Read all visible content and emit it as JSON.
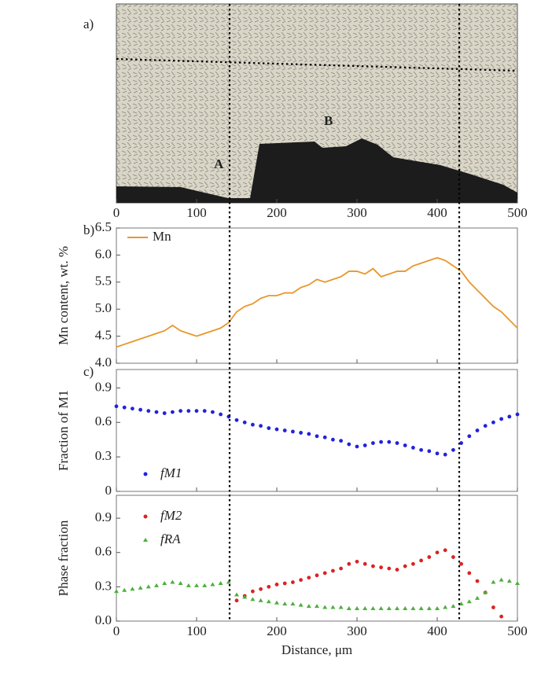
{
  "chart_data": [
    {
      "type": "image",
      "panel_label": "a)",
      "annotations": [
        "A",
        "B"
      ],
      "xlim": [
        0,
        500
      ],
      "xticks": [
        0,
        100,
        200,
        300,
        400,
        500
      ]
    },
    {
      "type": "line",
      "panel_label": "b)",
      "ylabel": "Mn content, wt. %",
      "xlim": [
        0,
        500
      ],
      "ylim": [
        4.0,
        6.5
      ],
      "yticks": [
        {
          "value": 4,
          "label": "4.0"
        },
        4.5,
        {
          "value": 5,
          "label": "5.0"
        },
        5.5,
        {
          "value": 6,
          "label": "6.0"
        },
        6.5
      ],
      "x": [
        0,
        10,
        20,
        30,
        40,
        50,
        60,
        70,
        80,
        90,
        100,
        110,
        120,
        130,
        140,
        150,
        160,
        170,
        180,
        190,
        200,
        210,
        220,
        230,
        240,
        250,
        260,
        270,
        280,
        290,
        300,
        310,
        320,
        330,
        340,
        350,
        360,
        370,
        380,
        390,
        400,
        410,
        420,
        430,
        440,
        450,
        460,
        470,
        480,
        490,
        500
      ],
      "series": [
        {
          "name": "Mn",
          "color": "#e8972a",
          "values": [
            4.3,
            4.35,
            4.4,
            4.45,
            4.5,
            4.55,
            4.6,
            4.7,
            4.6,
            4.55,
            4.5,
            4.55,
            4.6,
            4.65,
            4.75,
            4.95,
            5.05,
            5.1,
            5.2,
            5.25,
            5.25,
            5.3,
            5.3,
            5.4,
            5.45,
            5.55,
            5.5,
            5.55,
            5.6,
            5.7,
            5.7,
            5.65,
            5.75,
            5.6,
            5.65,
            5.7,
            5.7,
            5.8,
            5.85,
            5.9,
            5.95,
            5.9,
            5.8,
            5.7,
            5.5,
            5.35,
            5.2,
            5.05,
            4.95,
            4.8,
            4.65
          ]
        }
      ]
    },
    {
      "type": "scatter",
      "panel_label": "c)",
      "ylabel": "Fraction of M1",
      "xlim": [
        0,
        500
      ],
      "ylim": [
        0,
        1.06
      ],
      "yticks": [
        0,
        0.3,
        0.6,
        0.9
      ],
      "x": [
        0,
        10,
        20,
        30,
        40,
        50,
        60,
        70,
        80,
        90,
        100,
        110,
        120,
        130,
        140,
        150,
        160,
        170,
        180,
        190,
        200,
        210,
        220,
        230,
        240,
        250,
        260,
        270,
        280,
        290,
        300,
        310,
        320,
        330,
        340,
        350,
        360,
        370,
        380,
        390,
        400,
        410,
        420,
        430,
        440,
        450,
        460,
        470,
        480,
        490,
        500
      ],
      "series": [
        {
          "name": "fM1",
          "color": "#2222dd",
          "marker": "circle",
          "values": [
            0.74,
            0.73,
            0.72,
            0.71,
            0.7,
            0.69,
            0.68,
            0.69,
            0.7,
            0.7,
            0.7,
            0.7,
            0.69,
            0.67,
            0.65,
            0.62,
            0.6,
            0.58,
            0.57,
            0.55,
            0.54,
            0.53,
            0.52,
            0.51,
            0.5,
            0.48,
            0.47,
            0.45,
            0.44,
            0.41,
            0.39,
            0.4,
            0.42,
            0.43,
            0.43,
            0.42,
            0.4,
            0.38,
            0.36,
            0.35,
            0.33,
            0.32,
            0.36,
            0.42,
            0.48,
            0.53,
            0.57,
            0.6,
            0.63,
            0.65,
            0.67
          ]
        }
      ]
    },
    {
      "type": "scatter",
      "ylabel": "Phase fraction",
      "xlabel": "Distance, μm",
      "xlim": [
        0,
        500
      ],
      "ylim": [
        0,
        1.1
      ],
      "yticks": [
        {
          "value": 0,
          "label": "0.0"
        },
        0.3,
        0.6,
        0.9
      ],
      "xticks": [
        0,
        100,
        200,
        300,
        400,
        500
      ],
      "x": [
        0,
        10,
        20,
        30,
        40,
        50,
        60,
        70,
        80,
        90,
        100,
        110,
        120,
        130,
        140,
        150,
        160,
        170,
        180,
        190,
        200,
        210,
        220,
        230,
        240,
        250,
        260,
        270,
        280,
        290,
        300,
        310,
        320,
        330,
        340,
        350,
        360,
        370,
        380,
        390,
        400,
        410,
        420,
        430,
        440,
        450,
        460,
        470,
        480,
        490,
        500
      ],
      "series": [
        {
          "name": "fM2",
          "color": "#dd2222",
          "marker": "circle",
          "values": [
            null,
            null,
            null,
            null,
            null,
            null,
            null,
            null,
            null,
            null,
            null,
            null,
            null,
            null,
            null,
            0.18,
            0.22,
            0.26,
            0.28,
            0.3,
            0.32,
            0.33,
            0.34,
            0.36,
            0.38,
            0.4,
            0.42,
            0.44,
            0.46,
            0.5,
            0.52,
            0.5,
            0.48,
            0.47,
            0.46,
            0.45,
            0.48,
            0.5,
            0.53,
            0.56,
            0.6,
            0.62,
            0.56,
            0.5,
            0.42,
            0.35,
            0.25,
            0.12,
            0.04,
            null,
            null
          ]
        },
        {
          "name": "fRA",
          "color": "#4caf3c",
          "marker": "triangle",
          "values": [
            0.26,
            0.27,
            0.28,
            0.29,
            0.3,
            0.31,
            0.33,
            0.34,
            0.33,
            0.31,
            0.31,
            0.31,
            0.32,
            0.33,
            0.34,
            0.23,
            0.21,
            0.19,
            0.18,
            0.17,
            0.16,
            0.15,
            0.15,
            0.14,
            0.13,
            0.13,
            0.12,
            0.12,
            0.12,
            0.11,
            0.11,
            0.11,
            0.11,
            0.11,
            0.11,
            0.11,
            0.11,
            0.11,
            0.11,
            0.11,
            0.11,
            0.12,
            0.13,
            0.15,
            0.17,
            0.2,
            0.25,
            0.34,
            0.36,
            0.35,
            0.33
          ]
        }
      ]
    }
  ]
}
